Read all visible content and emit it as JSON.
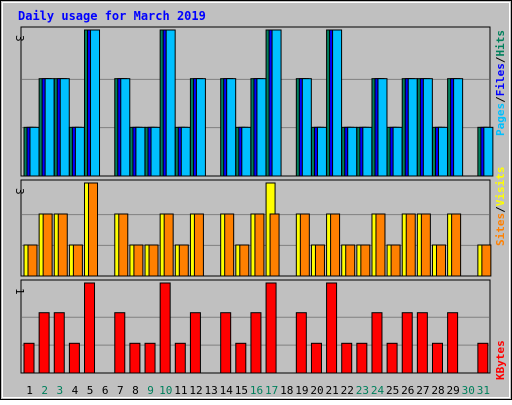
{
  "title": "Daily usage for March 2019",
  "colors": {
    "background": "#c0c0c0",
    "plot_bg": "#c0c0c0",
    "gridline": "#808080",
    "title": "#0000ff",
    "hits": "#00805c",
    "files": "#0000ff",
    "pages": "#00c0ff",
    "visits": "#ffff00",
    "sites": "#ff8000",
    "kbytes": "#ff0000",
    "weekend_label": "#00805c",
    "weekday_label": "#000000",
    "bar_outline": "#000000"
  },
  "right_labels": {
    "top": [
      "Pages",
      "/",
      "Files",
      "/",
      "Hits"
    ],
    "middle": [
      "Sites",
      "/",
      "Visits"
    ],
    "bottom": [
      "KBytes"
    ]
  },
  "chart_data": {
    "type": "bar",
    "title": "Daily usage for March 2019",
    "categories": [
      "1",
      "2",
      "3",
      "4",
      "5",
      "6",
      "7",
      "8",
      "9",
      "10",
      "11",
      "12",
      "13",
      "14",
      "15",
      "16",
      "17",
      "18",
      "19",
      "20",
      "21",
      "22",
      "23",
      "24",
      "25",
      "26",
      "27",
      "28",
      "29",
      "30",
      "31"
    ],
    "weekend_days": [
      "2",
      "3",
      "9",
      "10",
      "16",
      "17",
      "23",
      "24",
      "30",
      "31"
    ],
    "panels": [
      {
        "name": "top",
        "ymax_label": "3",
        "ymax": 3,
        "series": [
          {
            "name": "Hits",
            "values": [
              1,
              2,
              2,
              1,
              3,
              0,
              2,
              1,
              1,
              3,
              1,
              2,
              0,
              2,
              1,
              2,
              3,
              0,
              2,
              1,
              3,
              1,
              1,
              2,
              1,
              2,
              2,
              1,
              2,
              0,
              1
            ]
          },
          {
            "name": "Files",
            "values": [
              1,
              2,
              2,
              1,
              3,
              0,
              2,
              1,
              1,
              3,
              1,
              2,
              0,
              2,
              1,
              2,
              3,
              0,
              2,
              1,
              3,
              1,
              1,
              2,
              1,
              2,
              2,
              1,
              2,
              0,
              1
            ]
          },
          {
            "name": "Pages",
            "values": [
              1,
              2,
              2,
              1,
              3,
              0,
              2,
              1,
              1,
              3,
              1,
              2,
              0,
              2,
              1,
              2,
              3,
              0,
              2,
              1,
              3,
              1,
              1,
              2,
              1,
              2,
              2,
              1,
              2,
              0,
              1
            ]
          }
        ]
      },
      {
        "name": "middle",
        "ymax_label": "3",
        "ymax": 3,
        "series": [
          {
            "name": "Visits",
            "values": [
              1,
              2,
              2,
              1,
              3,
              0,
              2,
              1,
              1,
              2,
              1,
              2,
              0,
              2,
              1,
              2,
              3,
              0,
              2,
              1,
              2,
              1,
              1,
              2,
              1,
              2,
              2,
              1,
              2,
              0,
              1
            ]
          },
          {
            "name": "Sites",
            "values": [
              1,
              2,
              2,
              1,
              3,
              0,
              2,
              1,
              1,
              2,
              1,
              2,
              0,
              2,
              1,
              2,
              2,
              0,
              2,
              1,
              2,
              1,
              1,
              2,
              1,
              2,
              2,
              1,
              2,
              0,
              1
            ]
          }
        ]
      },
      {
        "name": "bottom",
        "ymax_label": "1",
        "ymax": 1,
        "series": [
          {
            "name": "KBytes",
            "values": [
              0.33,
              0.67,
              0.67,
              0.33,
              1,
              0,
              0.67,
              0.33,
              0.33,
              1,
              0.33,
              0.67,
              0,
              0.67,
              0.33,
              0.67,
              1,
              0,
              0.67,
              0.33,
              1,
              0.33,
              0.33,
              0.67,
              0.33,
              0.67,
              0.67,
              0.33,
              0.67,
              0,
              0.33
            ]
          }
        ]
      }
    ],
    "grid": true
  }
}
